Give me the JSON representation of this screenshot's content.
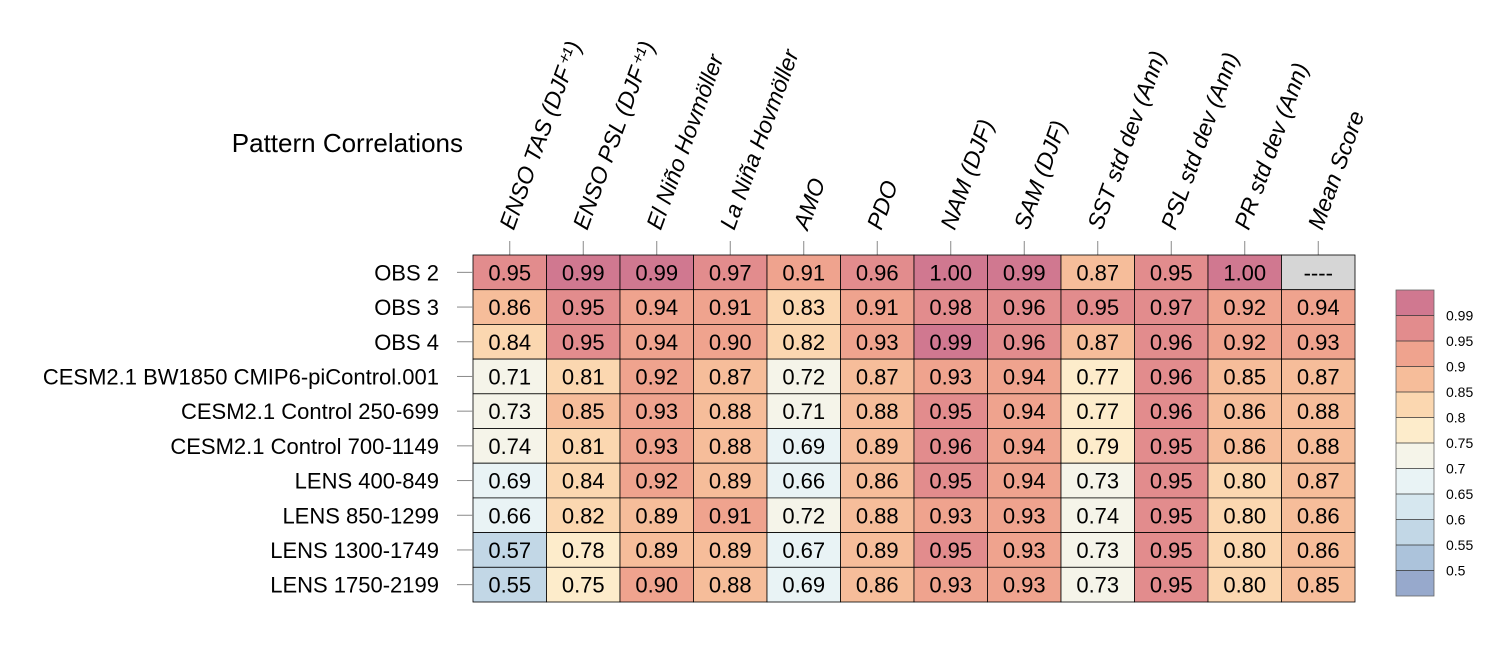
{
  "chart_data": {
    "type": "heatmap",
    "title": "Pattern Correlations",
    "columns": [
      "ENSO TAS (DJF⁺¹)",
      "ENSO PSL (DJF⁺¹)",
      "El Niño Hovmöller",
      "La Niña Hovmöller",
      "AMO",
      "PDO",
      "NAM (DJF)",
      "SAM (DJF)",
      "SST std dev (Ann)",
      "PSL std dev (Ann)",
      "PR std dev (Ann)",
      "Mean Score"
    ],
    "rows": [
      "OBS 2",
      "OBS 3",
      "OBS 4",
      "CESM2.1 BW1850 CMIP6-piControl.001",
      "CESM2.1 Control 250-699",
      "CESM2.1 Control 700-1149",
      "LENS 400-849",
      "LENS 850-1299",
      "LENS 1300-1749",
      "LENS 1750-2199"
    ],
    "values": [
      [
        "0.95",
        "0.99",
        "0.99",
        "0.97",
        "0.91",
        "0.96",
        "1.00",
        "0.99",
        "0.87",
        "0.95",
        "1.00",
        "----"
      ],
      [
        "0.86",
        "0.95",
        "0.94",
        "0.91",
        "0.83",
        "0.91",
        "0.98",
        "0.96",
        "0.95",
        "0.97",
        "0.92",
        "0.94"
      ],
      [
        "0.84",
        "0.95",
        "0.94",
        "0.90",
        "0.82",
        "0.93",
        "0.99",
        "0.96",
        "0.87",
        "0.96",
        "0.92",
        "0.93"
      ],
      [
        "0.71",
        "0.81",
        "0.92",
        "0.87",
        "0.72",
        "0.87",
        "0.93",
        "0.94",
        "0.77",
        "0.96",
        "0.85",
        "0.87"
      ],
      [
        "0.73",
        "0.85",
        "0.93",
        "0.88",
        "0.71",
        "0.88",
        "0.95",
        "0.94",
        "0.77",
        "0.96",
        "0.86",
        "0.88"
      ],
      [
        "0.74",
        "0.81",
        "0.93",
        "0.88",
        "0.69",
        "0.89",
        "0.96",
        "0.94",
        "0.79",
        "0.95",
        "0.86",
        "0.88"
      ],
      [
        "0.69",
        "0.84",
        "0.92",
        "0.89",
        "0.66",
        "0.86",
        "0.95",
        "0.94",
        "0.73",
        "0.95",
        "0.80",
        "0.87"
      ],
      [
        "0.66",
        "0.82",
        "0.89",
        "0.91",
        "0.72",
        "0.88",
        "0.93",
        "0.93",
        "0.74",
        "0.95",
        "0.80",
        "0.86"
      ],
      [
        "0.57",
        "0.78",
        "0.89",
        "0.89",
        "0.67",
        "0.89",
        "0.95",
        "0.93",
        "0.73",
        "0.95",
        "0.80",
        "0.86"
      ],
      [
        "0.55",
        "0.75",
        "0.90",
        "0.88",
        "0.69",
        "0.86",
        "0.93",
        "0.93",
        "0.73",
        "0.95",
        "0.80",
        "0.85"
      ]
    ],
    "missing_color": "#d6d6d6",
    "colorbar": {
      "levels": [
        "0.5",
        "0.55",
        "0.6",
        "0.65",
        "0.7",
        "0.75",
        "0.8",
        "0.85",
        "0.9",
        "0.95",
        "0.99"
      ],
      "colors": [
        "#97a9cc",
        "#acc3db",
        "#c2d7e6",
        "#d6e7ef",
        "#e9f3f5",
        "#f5f4e9",
        "#fdeccb",
        "#fbd7b0",
        "#f6bd9a",
        "#efa38e",
        "#e28c8d",
        "#d07890"
      ]
    }
  }
}
